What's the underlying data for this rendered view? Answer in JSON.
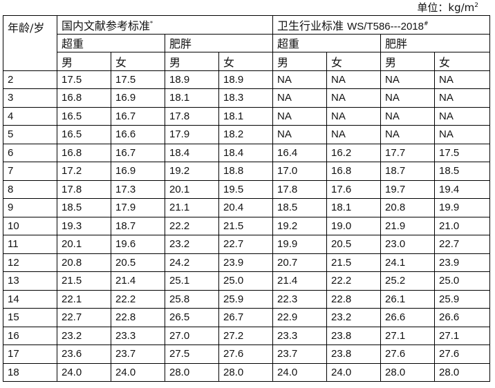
{
  "unit": {
    "label": "单位：",
    "value": "kg/m",
    "superscript": "2"
  },
  "header": {
    "age": "年龄/岁",
    "groups": [
      {
        "label": "国内文献参考标准",
        "mark": "*"
      },
      {
        "label": "卫生行业标准 ",
        "code": "WS/T586---2018",
        "mark": "#"
      }
    ],
    "categories": [
      "超重",
      "肥胖",
      "超重",
      "肥胖"
    ],
    "sexes": [
      "男",
      "女",
      "男",
      "女",
      "男",
      "女",
      "男",
      "女"
    ]
  },
  "rows": [
    {
      "age": "2",
      "values": [
        "17.5",
        "17.5",
        "18.9",
        "18.9",
        "NA",
        "NA",
        "NA",
        "NA"
      ]
    },
    {
      "age": "3",
      "values": [
        "16.8",
        "16.9",
        "18.1",
        "18.3",
        "NA",
        "NA",
        "NA",
        "NA"
      ]
    },
    {
      "age": "4",
      "values": [
        "16.5",
        "16.7",
        "17.8",
        "18.1",
        "NA",
        "NA",
        "NA",
        "NA"
      ]
    },
    {
      "age": "5",
      "values": [
        "16.5",
        "16.6",
        "17.9",
        "18.2",
        "NA",
        "NA",
        "NA",
        "NA"
      ]
    },
    {
      "age": "6",
      "values": [
        "16.8",
        "16.7",
        "18.4",
        "18.4",
        "16.4",
        "16.2",
        "17.7",
        "17.5"
      ]
    },
    {
      "age": "7",
      "values": [
        "17.2",
        "16.9",
        "19.2",
        "18.8",
        "17.0",
        "16.8",
        "18.7",
        "18.5"
      ]
    },
    {
      "age": "8",
      "values": [
        "17.8",
        "17.3",
        "20.1",
        "19.5",
        "17.8",
        "17.6",
        "19.7",
        "19.4"
      ]
    },
    {
      "age": "9",
      "values": [
        "18.5",
        "17.9",
        "21.1",
        "20.4",
        "18.5",
        "18.1",
        "20.8",
        "19.9"
      ]
    },
    {
      "age": "10",
      "values": [
        "19.3",
        "18.7",
        "22.2",
        "21.5",
        "19.2",
        "19.0",
        "21.9",
        "21.0"
      ]
    },
    {
      "age": "11",
      "values": [
        "20.1",
        "19.6",
        "23.2",
        "22.7",
        "19.9",
        "20.5",
        "23.0",
        "22.7"
      ]
    },
    {
      "age": "12",
      "values": [
        "20.8",
        "20.5",
        "24.2",
        "23.9",
        "20.7",
        "21.5",
        "24.1",
        "23.9"
      ]
    },
    {
      "age": "13",
      "values": [
        "21.5",
        "21.4",
        "25.1",
        "25.0",
        "21.4",
        "22.2",
        "25.2",
        "25.0"
      ]
    },
    {
      "age": "14",
      "values": [
        "22.1",
        "22.2",
        "25.8",
        "25.9",
        "22.3",
        "22.8",
        "26.1",
        "25.9"
      ]
    },
    {
      "age": "15",
      "values": [
        "22.7",
        "22.8",
        "26.5",
        "26.7",
        "22.9",
        "23.2",
        "26.6",
        "26.6"
      ]
    },
    {
      "age": "16",
      "values": [
        "23.2",
        "23.3",
        "27.0",
        "27.2",
        "23.3",
        "23.8",
        "27.1",
        "27.1"
      ]
    },
    {
      "age": "17",
      "values": [
        "23.6",
        "23.7",
        "27.5",
        "27.6",
        "23.7",
        "23.8",
        "27.6",
        "27.6"
      ]
    },
    {
      "age": "18",
      "values": [
        "24.0",
        "24.0",
        "28.0",
        "28.0",
        "24.0",
        "24.0",
        "28.0",
        "28.0"
      ]
    }
  ]
}
